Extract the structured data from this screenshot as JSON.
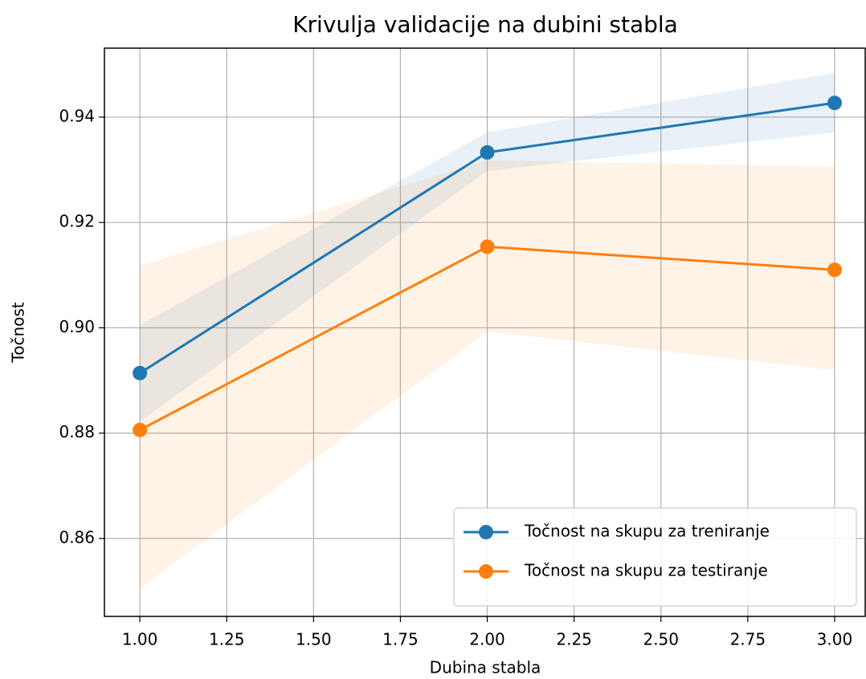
{
  "chart_data": {
    "type": "line",
    "title": "Krivulja validacije na dubini stabla",
    "xlabel": "Dubina stabla",
    "ylabel": "Točnost",
    "x": [
      1,
      2,
      3
    ],
    "series": [
      {
        "name": "Točnost na skupu za treniranje",
        "color": "#1f77b4",
        "values": [
          0.8914,
          0.9333,
          0.9427
        ],
        "lower": [
          0.8822,
          0.9298,
          0.9371
        ],
        "upper": [
          0.9005,
          0.9371,
          0.9484
        ]
      },
      {
        "name": "Točnost na skupu za testiranje",
        "color": "#ff7f0e",
        "values": [
          0.8806,
          0.9154,
          0.911
        ],
        "lower": [
          0.8506,
          0.8993,
          0.892
        ],
        "upper": [
          0.9118,
          0.9318,
          0.9306
        ]
      }
    ],
    "xlim": [
      0.898,
      3.088
    ],
    "ylim": [
      0.8452,
      0.9531
    ],
    "xticks": [
      {
        "value": 1,
        "label": "1.00"
      },
      {
        "value": 1.25,
        "label": "1.25"
      },
      {
        "value": 1.5,
        "label": "1.50"
      },
      {
        "value": 1.75,
        "label": "1.75"
      },
      {
        "value": 2,
        "label": "2.00"
      },
      {
        "value": 2.25,
        "label": "2.25"
      },
      {
        "value": 2.5,
        "label": "2.50"
      },
      {
        "value": 2.75,
        "label": "2.75"
      },
      {
        "value": 3,
        "label": "3.00"
      }
    ],
    "yticks": [
      {
        "value": 0.86,
        "label": "0.86"
      },
      {
        "value": 0.88,
        "label": "0.88"
      },
      {
        "value": 0.9,
        "label": "0.90"
      },
      {
        "value": 0.92,
        "label": "0.92"
      },
      {
        "value": 0.94,
        "label": "0.94"
      }
    ],
    "grid": true,
    "legend": "lower right"
  }
}
